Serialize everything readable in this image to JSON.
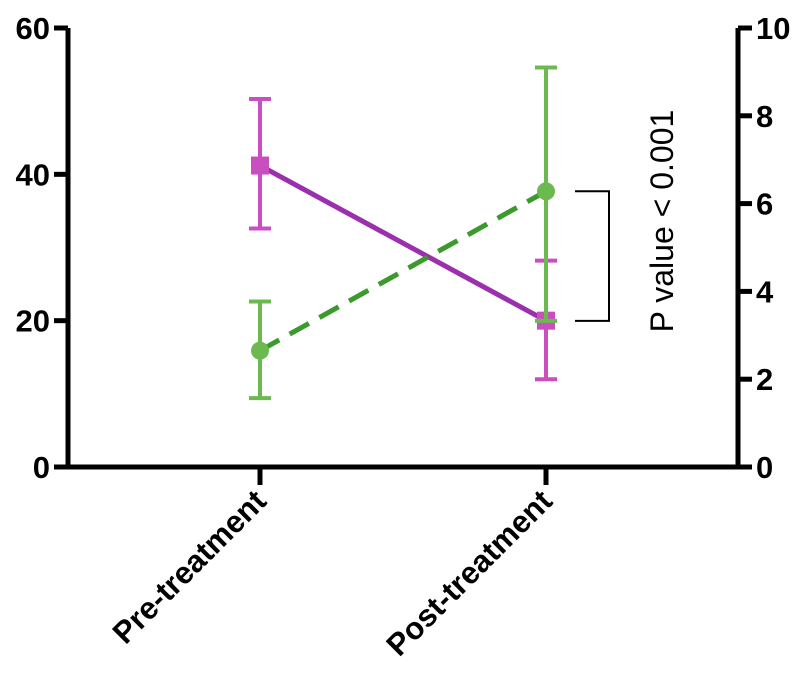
{
  "chart_data": {
    "type": "line",
    "categories": [
      "Pre-treatment",
      "Post-treatment"
    ],
    "left_axis": {
      "ylim": [
        0,
        60
      ],
      "ticks": [
        "0",
        "20",
        "40",
        "60"
      ]
    },
    "right_axis": {
      "ylim": [
        0,
        10
      ],
      "ticks": [
        "0",
        "2",
        "4",
        "6",
        "8",
        "10"
      ]
    },
    "series": [
      {
        "axis": "left",
        "marker": "square",
        "line_style": "solid",
        "color": "#9b2fae",
        "errorbar_color": "#c94fc0",
        "values": [
          41.2,
          20.0
        ],
        "err_low": [
          32.6,
          12.0
        ],
        "err_high": [
          50.3,
          28.2
        ]
      },
      {
        "axis": "right",
        "marker": "circle",
        "line_style": "dashed",
        "color": "#3a9a2b",
        "errorbar_color": "#6cba4f",
        "values": [
          2.65,
          6.28
        ],
        "err_low": [
          1.57,
          3.33
        ],
        "err_high": [
          3.77,
          9.1
        ]
      }
    ],
    "annotation": {
      "text": "P value < 0.001",
      "bracket_between": [
        6.28,
        3.33
      ],
      "bracket_axis": "right"
    }
  }
}
